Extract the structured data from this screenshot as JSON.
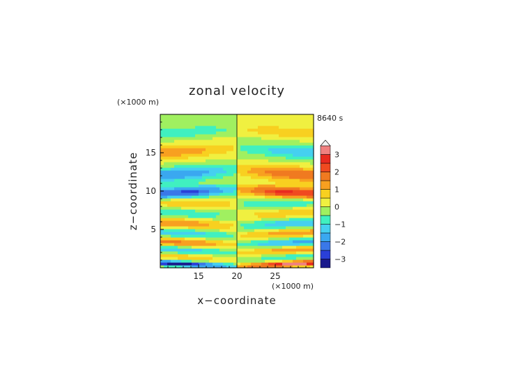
{
  "chart_data": {
    "type": "heatmap",
    "title": "zonal velocity",
    "xlabel": "x−coordinate",
    "ylabel": "z−coordinate",
    "x_unit": "(×1000 m)",
    "y_unit": "(×1000 m)",
    "time_label": "8640 s",
    "xlim": [
      10,
      30
    ],
    "ylim": [
      0,
      20
    ],
    "xticks": [
      {
        "v": 15,
        "label": "15"
      },
      {
        "v": 20,
        "label": "20"
      },
      {
        "v": 25,
        "label": "25"
      }
    ],
    "yticks": [
      {
        "v": 5,
        "label": "5"
      },
      {
        "v": 10,
        "label": "10"
      },
      {
        "v": 15,
        "label": "15"
      }
    ],
    "colorbar": {
      "min": -3.5,
      "max": 3.5,
      "levels": [
        -3.5,
        -3,
        -2.5,
        -2,
        -1.5,
        -1,
        -0.5,
        0,
        0.5,
        1,
        1.5,
        2,
        2.5,
        3,
        3.5
      ],
      "colors": [
        "#1a1a8c",
        "#2a3fd8",
        "#3a78e8",
        "#3aa8f0",
        "#45d0f0",
        "#40f0c0",
        "#a0f060",
        "#f0f040",
        "#f8d020",
        "#f8a020",
        "#f07a20",
        "#f04a20",
        "#e82a20",
        "#f08080"
      ],
      "ticks": [
        {
          "v": 3,
          "label": "3"
        },
        {
          "v": 2,
          "label": "2"
        },
        {
          "v": 1,
          "label": "1"
        },
        {
          "v": 0,
          "label": "0"
        },
        {
          "v": -1,
          "label": "−1"
        },
        {
          "v": -2,
          "label": "−2"
        },
        {
          "v": -3,
          "label": "−3"
        }
      ]
    },
    "field": {
      "description": "antisymmetric banded pattern about x=20",
      "bands": [
        {
          "z": 0.2,
          "width": 0.35,
          "amp": -3.2
        },
        {
          "z": 1.2,
          "width": 0.5,
          "amp": 0.8
        },
        {
          "z": 2.0,
          "width": 0.5,
          "amp": -1.6
        },
        {
          "z": 3.0,
          "width": 0.6,
          "amp": 1.6
        },
        {
          "z": 4.2,
          "width": 0.6,
          "amp": -1.4
        },
        {
          "z": 5.5,
          "width": 0.7,
          "amp": 1.4
        },
        {
          "z": 6.8,
          "width": 0.7,
          "amp": -1.0
        },
        {
          "z": 8.3,
          "width": 0.8,
          "amp": 1.2
        },
        {
          "z": 10.3,
          "width": 0.8,
          "amp": -2.8
        },
        {
          "z": 12.8,
          "width": 0.9,
          "amp": -2.0
        },
        {
          "z": 15.7,
          "width": 0.9,
          "amp": 1.3
        },
        {
          "z": 18.2,
          "width": 0.7,
          "amp": -1.0
        }
      ]
    }
  }
}
